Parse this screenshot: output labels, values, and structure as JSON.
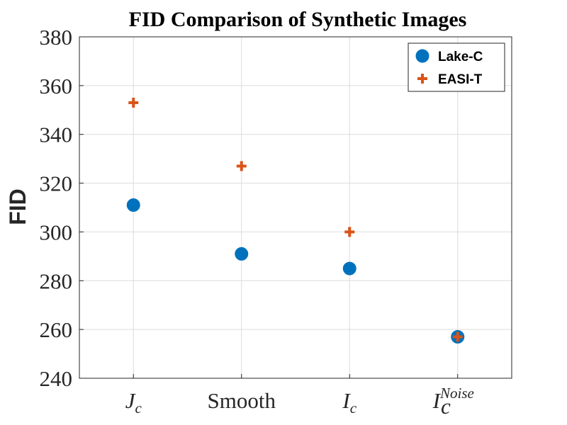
{
  "chart_data": {
    "type": "scatter",
    "title": "FID Comparison of Synthetic Images",
    "xlabel": "",
    "ylabel": "FID",
    "ylim": [
      240,
      380
    ],
    "yticks": [
      240,
      260,
      280,
      300,
      320,
      340,
      360,
      380
    ],
    "categories": [
      {
        "base": "J",
        "sub": "c",
        "sup": ""
      },
      {
        "base": "Smooth",
        "sub": "",
        "sup": ""
      },
      {
        "base": "I",
        "sub": "c",
        "sup": ""
      },
      {
        "base": "I",
        "sub": "c",
        "sup": "Noise"
      }
    ],
    "series": [
      {
        "name": "Lake-C",
        "marker": "circle",
        "color": "#0072BD",
        "values": [
          311,
          291,
          285,
          257
        ]
      },
      {
        "name": "EASI-T",
        "marker": "plus",
        "color": "#D95319",
        "values": [
          353,
          327,
          300,
          257
        ]
      }
    ],
    "grid": true,
    "legend_position": "top-right"
  }
}
